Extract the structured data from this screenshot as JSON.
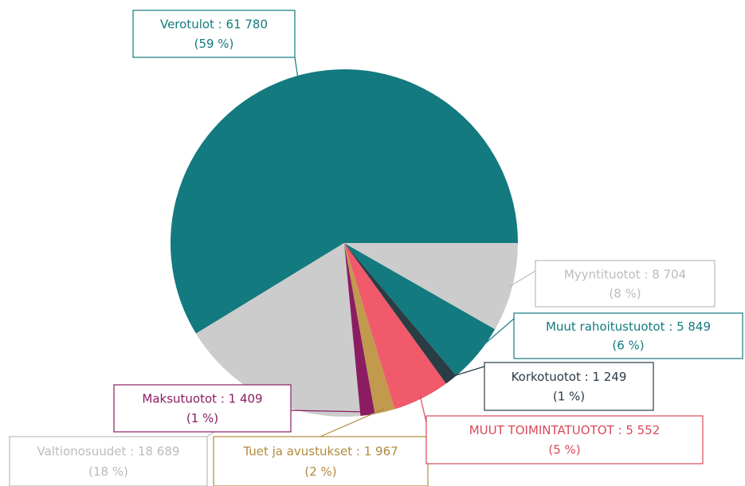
{
  "chart_data": {
    "type": "pie",
    "categories": [
      "Verotulot",
      "Valtionosuudet",
      "Maksutuotot",
      "Tuet ja avustukset",
      "MUUT TOIMINTATUOTOT",
      "Korkotuotot",
      "Muut rahoitustuotot",
      "Myyntituotot"
    ],
    "values": [
      61780,
      18689,
      1409,
      1967,
      5552,
      1249,
      5849,
      8704
    ],
    "value_labels": [
      "61 780",
      "18 689",
      "1 409",
      "1 967",
      "5 552",
      "1 249",
      "5 849",
      "8 704"
    ],
    "percent_labels": [
      "(59 %)",
      "(18 %)",
      "(1 %)",
      "(2 %)",
      "(5 %)",
      "(1 %)",
      "(6 %)",
      "(8 %)"
    ],
    "label_separator": " : ",
    "colors": [
      "#137a7f",
      "#cccccc",
      "#8b1c62",
      "#c19a4e",
      "#f05a6a",
      "#2a3d45",
      "#137a7f",
      "#cccccc"
    ],
    "label_colors": [
      "#137a7f",
      "#bbbbbb",
      "#8b1c62",
      "#b08a3e",
      "#d9495a",
      "#2a3d45",
      "#137a7f",
      "#bbbbbb"
    ]
  }
}
